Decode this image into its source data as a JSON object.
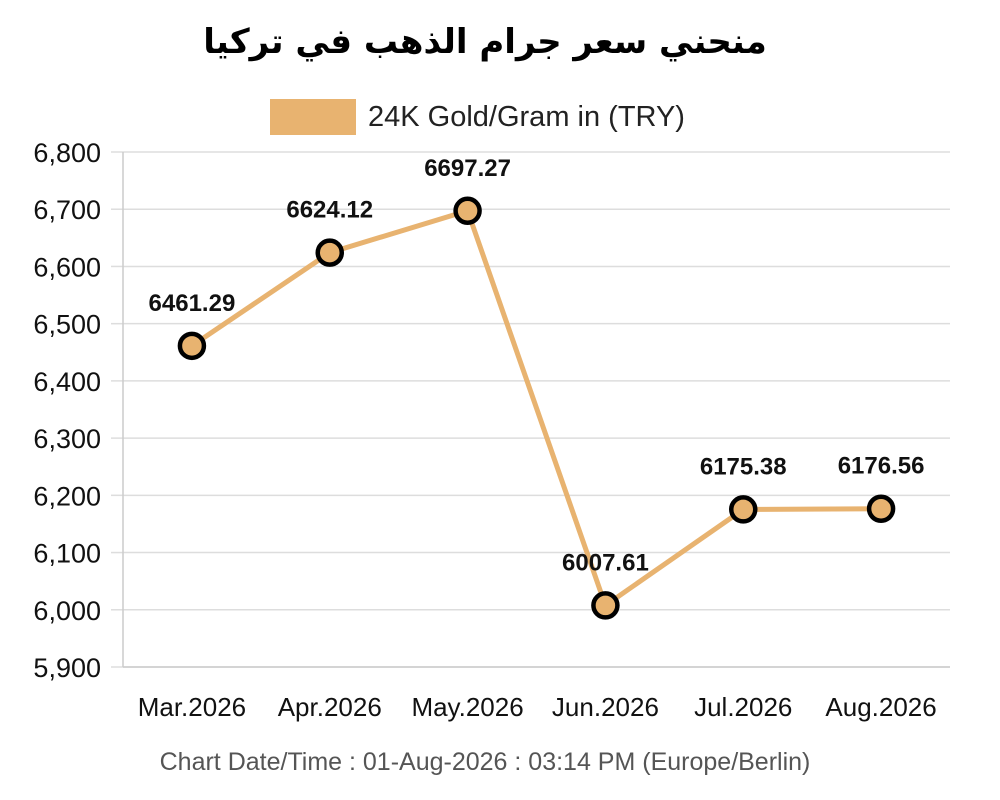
{
  "chart_data": {
    "type": "line",
    "title": "منحني سعر جرام الذهب في تركيا",
    "categories": [
      "Mar.2026",
      "Apr.2026",
      "May.2026",
      "Jun.2026",
      "Jul.2026",
      "Aug.2026"
    ],
    "series": [
      {
        "name": "24K Gold/Gram in (TRY)",
        "values": [
          6461.29,
          6624.12,
          6697.27,
          6007.61,
          6175.38,
          6176.56
        ],
        "labels": [
          "6461.29",
          "6624.12",
          "6697.27",
          "6007.61",
          "6175.38",
          "6176.56"
        ]
      }
    ],
    "ylim": [
      5900,
      6800
    ],
    "yticks": [
      5900,
      6000,
      6100,
      6200,
      6300,
      6400,
      6500,
      6600,
      6700,
      6800
    ],
    "ytick_labels": [
      "5,900",
      "6,000",
      "6,100",
      "6,200",
      "6,300",
      "6,400",
      "6,500",
      "6,600",
      "6,700",
      "6,800"
    ],
    "grid": true,
    "legend_position": "top",
    "colors": {
      "line": "#e8b370",
      "marker_fill": "#e8b370",
      "marker_edge": "#000000",
      "grid": "#dddddd"
    }
  },
  "footer": "Chart Date/Time : 01-Aug-2026 : 03:14 PM (Europe/Berlin)"
}
